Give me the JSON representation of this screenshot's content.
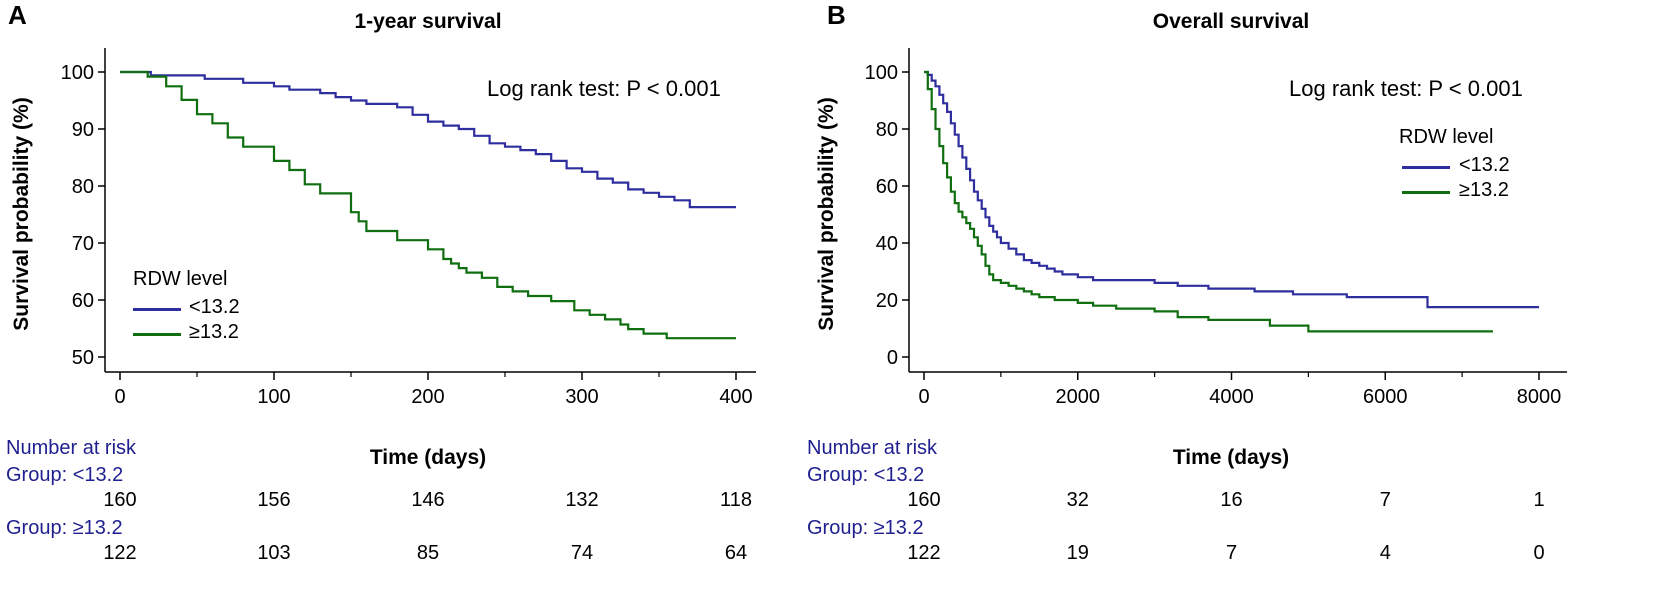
{
  "colors": {
    "low_rdw": "#2e2e9e",
    "high_rdw": "#0f6e0f",
    "risk_text": "#1f1f8f"
  },
  "chart_data": [
    {
      "panel": "A",
      "type": "line",
      "title": "1-year survival",
      "xlabel": "Time (days)",
      "ylabel": "Survival probability (%)",
      "xlim": [
        0,
        400
      ],
      "ylim": [
        50,
        100
      ],
      "xticks": [
        0,
        100,
        200,
        300,
        400
      ],
      "yticks": [
        50,
        60,
        70,
        80,
        90,
        100
      ],
      "annotation": "Log rank test: P < 0.001",
      "legend": {
        "title": "RDW level",
        "placement": "lower-left",
        "entries": [
          "<13.2",
          "≥13.2"
        ]
      },
      "series": [
        {
          "name": "<13.2",
          "x": [
            0,
            20,
            55,
            80,
            100,
            110,
            130,
            140,
            150,
            160,
            180,
            190,
            200,
            210,
            220,
            230,
            240,
            250,
            260,
            270,
            280,
            290,
            300,
            310,
            320,
            330,
            340,
            350,
            360,
            370,
            400
          ],
          "y": [
            100,
            99.4,
            98.8,
            98.1,
            97.5,
            96.9,
            96.3,
            95.6,
            95,
            94.4,
            93.8,
            92.5,
            91.3,
            90.6,
            90,
            88.8,
            87.5,
            86.9,
            86.3,
            85.6,
            84.4,
            83.1,
            82.5,
            81.3,
            80.6,
            79.4,
            78.8,
            78.1,
            77.5,
            76.3,
            76.3
          ]
        },
        {
          "name": "≥13.2",
          "x": [
            0,
            18,
            30,
            40,
            50,
            60,
            70,
            80,
            100,
            110,
            120,
            130,
            150,
            155,
            160,
            180,
            200,
            210,
            215,
            220,
            225,
            235,
            245,
            255,
            265,
            280,
            295,
            305,
            315,
            325,
            330,
            340,
            355,
            400
          ],
          "y": [
            100,
            99.2,
            97.5,
            95.1,
            92.6,
            91,
            88.5,
            86.9,
            84.4,
            82.8,
            80.3,
            78.7,
            75.4,
            73.8,
            72.1,
            70.5,
            68.9,
            67.2,
            66.4,
            65.6,
            64.8,
            63.9,
            62.3,
            61.5,
            60.7,
            59.8,
            58.2,
            57.4,
            56.6,
            55.7,
            54.9,
            54.1,
            53.3,
            53.3
          ]
        }
      ],
      "risk_table": {
        "title": "Number at risk",
        "times": [
          0,
          100,
          200,
          300,
          400
        ],
        "groups": [
          {
            "label": "Group: <13.2",
            "values": [
              "160",
              "156",
              "146",
              "132",
              "118"
            ]
          },
          {
            "label": "Group: ≥13.2",
            "values": [
              "122",
              "103",
              "85",
              "74",
              "64"
            ]
          }
        ]
      }
    },
    {
      "panel": "B",
      "type": "line",
      "title": "Overall survival",
      "xlabel": "Time (days)",
      "ylabel": "Survival probability (%)",
      "xlim": [
        0,
        8000
      ],
      "ylim": [
        0,
        100
      ],
      "xticks": [
        0,
        2000,
        4000,
        6000,
        8000
      ],
      "yticks": [
        0,
        20,
        40,
        60,
        80,
        100
      ],
      "annotation": "Log rank test: P < 0.001",
      "legend": {
        "title": "RDW level",
        "placement": "upper-right",
        "entries": [
          "<13.2",
          "≥13.2"
        ]
      },
      "series": [
        {
          "name": "<13.2",
          "x": [
            0,
            50,
            100,
            150,
            200,
            250,
            300,
            350,
            400,
            450,
            500,
            550,
            600,
            650,
            700,
            750,
            800,
            850,
            900,
            950,
            1000,
            1100,
            1200,
            1300,
            1400,
            1500,
            1600,
            1700,
            1800,
            2000,
            2200,
            2400,
            2700,
            3000,
            3300,
            3700,
            4300,
            4800,
            5500,
            6000,
            6550,
            8000
          ],
          "y": [
            100,
            99,
            97,
            95,
            92,
            89,
            86,
            82,
            78,
            74,
            70,
            66,
            62,
            58,
            55,
            52,
            49,
            46,
            44,
            42,
            40,
            38,
            36,
            34,
            33,
            32,
            31,
            30,
            29,
            28,
            27,
            27,
            27,
            26,
            25,
            24,
            23,
            22,
            21,
            21,
            17.5,
            17.5
          ]
        },
        {
          "name": "≥13.2",
          "x": [
            0,
            50,
            100,
            150,
            200,
            250,
            300,
            350,
            400,
            450,
            500,
            550,
            600,
            650,
            700,
            750,
            800,
            850,
            900,
            1000,
            1100,
            1200,
            1300,
            1400,
            1500,
            1700,
            2000,
            2200,
            2500,
            3000,
            3300,
            3700,
            4500,
            5000,
            6000,
            7400
          ],
          "y": [
            100,
            94,
            87,
            80,
            74,
            68,
            63,
            58,
            54,
            51,
            49,
            47,
            45,
            42,
            39,
            36,
            32,
            29,
            27,
            26,
            25,
            24,
            23,
            22,
            21,
            20,
            19,
            18,
            17,
            16,
            14,
            13,
            11,
            9,
            9,
            9
          ]
        }
      ],
      "risk_table": {
        "title": "Number at risk",
        "times": [
          0,
          2000,
          4000,
          6000,
          8000
        ],
        "groups": [
          {
            "label": "Group: <13.2",
            "values": [
              "160",
              "32",
              "16",
              "7",
              "1"
            ]
          },
          {
            "label": "Group: ≥13.2",
            "values": [
              "122",
              "19",
              "7",
              "4",
              "0"
            ]
          }
        ]
      }
    }
  ]
}
